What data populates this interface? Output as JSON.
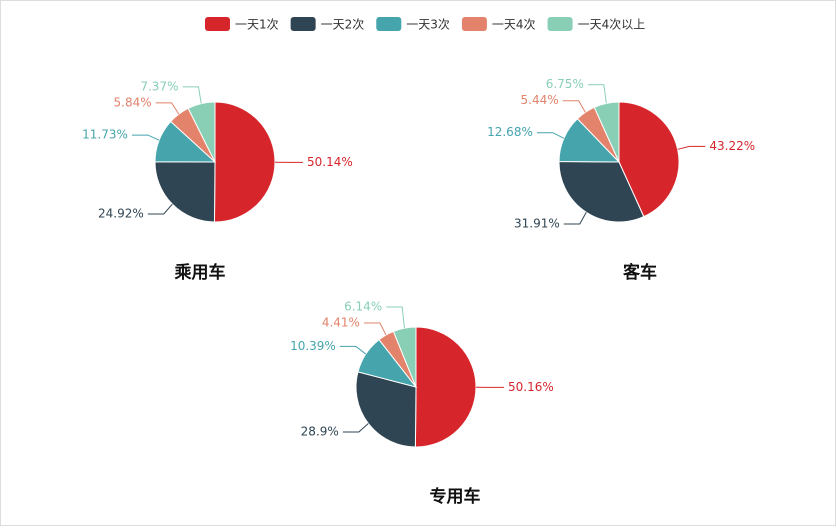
{
  "legend": {
    "labels": [
      "一天1次",
      "一天2次",
      "一天3次",
      "一天4次",
      "一天4次以上"
    ],
    "colors": [
      "#d7262b",
      "#2f4553",
      "#45a4ac",
      "#e3836b",
      "#88cfb6"
    ]
  },
  "chart_data": [
    {
      "type": "pie",
      "title": "乘用车",
      "values": [
        50.14,
        24.92,
        11.73,
        5.84,
        7.37
      ],
      "value_labels": [
        "50.14%",
        "24.92%",
        "11.73%",
        "5.84%",
        "7.37%"
      ]
    },
    {
      "type": "pie",
      "title": "客车",
      "values": [
        43.22,
        31.91,
        12.68,
        5.44,
        6.75
      ],
      "value_labels": [
        "43.22%",
        "31.91%",
        "12.68%",
        "5.44%",
        "6.75%"
      ]
    },
    {
      "type": "pie",
      "title": "专用车",
      "values": [
        50.16,
        28.9,
        10.39,
        4.41,
        6.14
      ],
      "value_labels": [
        "50.16%",
        "28.9%",
        "10.39%",
        "4.41%",
        "6.14%"
      ]
    }
  ]
}
